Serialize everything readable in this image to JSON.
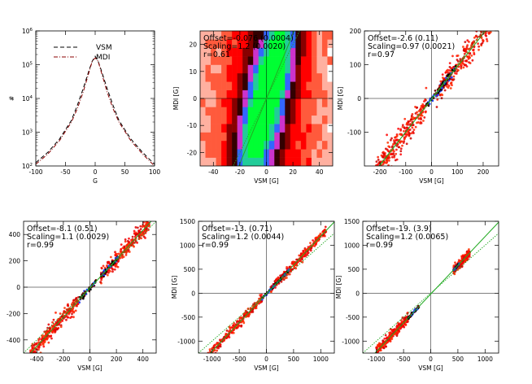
{
  "chart_data": [
    {
      "type": "line",
      "ylog": true,
      "xlim": [
        -100,
        100
      ],
      "ylim_exp": [
        2,
        6
      ],
      "xticks": [
        -100,
        -50,
        0,
        50,
        100
      ],
      "yticks_exp": [
        2,
        3,
        4,
        5,
        6
      ],
      "xlabel": "G",
      "ylabel": "#",
      "legend": "top-left",
      "series": [
        {
          "name": "VSM",
          "style": "dashed",
          "color": "#000000",
          "x": [
            -100,
            -80,
            -60,
            -40,
            -30,
            -20,
            -10,
            -5,
            0,
            5,
            10,
            20,
            30,
            40,
            60,
            80,
            100
          ],
          "y_exp": [
            2.1,
            2.4,
            2.8,
            3.35,
            3.8,
            4.3,
            4.85,
            5.1,
            5.25,
            5.1,
            4.85,
            4.3,
            3.8,
            3.35,
            2.8,
            2.4,
            2.05
          ]
        },
        {
          "name": "MDI",
          "style": "dashdot",
          "color": "#8b0000",
          "x": [
            -100,
            -80,
            -60,
            -40,
            -30,
            -20,
            -10,
            -5,
            0,
            5,
            10,
            20,
            30,
            40,
            60,
            80,
            100
          ],
          "y_exp": [
            2.05,
            2.35,
            2.75,
            3.3,
            3.7,
            4.2,
            4.8,
            5.1,
            5.2,
            5.1,
            4.8,
            4.2,
            3.7,
            3.3,
            2.75,
            2.35,
            2.0
          ]
        }
      ]
    },
    {
      "type": "heatmap",
      "xlim": [
        -50,
        50
      ],
      "ylim": [
        -25,
        25
      ],
      "xticks": [
        -40,
        -20,
        0,
        20,
        40
      ],
      "yticks": [
        -20,
        -10,
        0,
        10,
        20
      ],
      "xlabel": "VSM [G]",
      "ylabel": "MDI [G]",
      "offset_label": "Offset=-0.076  (0.0004)",
      "scaling_label": "Scaling=1.2  (0.0020)",
      "r_label": "r=0.61",
      "fit": {
        "offset": -0.076,
        "scaling": 1.2
      }
    },
    {
      "type": "scatter",
      "xlim": [
        -260,
        260
      ],
      "ylim": [
        -200,
        200
      ],
      "xticks": [
        -200,
        -100,
        0,
        100,
        200
      ],
      "yticks": [
        -100,
        0,
        100,
        200
      ],
      "xlabel": "VSM [G]",
      "ylabel": "MDI [G]",
      "offset_label": "Offset=-2.6  (0.11)",
      "scaling_label": "Scaling=0.97  (0.0021)",
      "r_label": "r=0.97",
      "fit": {
        "offset": -2.6,
        "scaling": 0.97
      },
      "clusters": [
        {
          "x": [
            -230,
            -20
          ],
          "spread": 18
        },
        {
          "x": [
            20,
            230
          ],
          "spread": 18
        }
      ]
    },
    {
      "type": "scatter",
      "xlim": [
        -500,
        500
      ],
      "ylim": [
        -500,
        500
      ],
      "xticks": [
        -400,
        -200,
        0,
        200,
        400
      ],
      "yticks": [
        -400,
        -200,
        0,
        200,
        400
      ],
      "xlabel": "VSM [G]",
      "ylabel": "",
      "offset_label": "Offset=-8.1  (0.51)",
      "scaling_label": "Scaling=1.1  (0.0029)",
      "r_label": "r=0.99",
      "fit": {
        "offset": -8.1,
        "scaling": 1.1
      },
      "clusters": [
        {
          "x": [
            -450,
            -80
          ],
          "spread": 30
        },
        {
          "x": [
            80,
            450
          ],
          "spread": 30
        }
      ]
    },
    {
      "type": "scatter",
      "xlim": [
        -1250,
        1250
      ],
      "ylim": [
        -1250,
        1500
      ],
      "xticks": [
        -1000,
        -500,
        0,
        500,
        1000
      ],
      "yticks": [
        -1000,
        -500,
        0,
        500,
        1000,
        1500
      ],
      "xlabel": "VSM [G]",
      "ylabel": "MDI [G]",
      "offset_label": "Offset=-13.  (0.71)",
      "scaling_label": "Scaling=1.2  (0.0044)",
      "r_label": "r=0.99",
      "fit": {
        "offset": -13,
        "scaling": 1.2
      },
      "clusters": [
        {
          "x": [
            -1100,
            -80
          ],
          "spread": 45
        },
        {
          "x": [
            80,
            1100
          ],
          "spread": 45
        }
      ]
    },
    {
      "type": "scatter",
      "xlim": [
        -1250,
        1250
      ],
      "ylim": [
        -1250,
        1500
      ],
      "xticks": [
        -1000,
        -500,
        0,
        500,
        1000
      ],
      "yticks": [
        -1000,
        -500,
        0,
        500,
        1000,
        1500
      ],
      "xlabel": "VSM [G]",
      "ylabel": "MDI [G]",
      "offset_label": "Offset=-19.  (3.9)",
      "scaling_label": "Scaling=1.2  (0.0065)",
      "r_label": "r=0.99",
      "fit": {
        "offset": -19,
        "scaling": 1.2
      },
      "clusters": [
        {
          "x": [
            -1000,
            -420
          ],
          "spread": 50
        },
        {
          "x": [
            420,
            720
          ],
          "spread": 40
        }
      ]
    }
  ]
}
